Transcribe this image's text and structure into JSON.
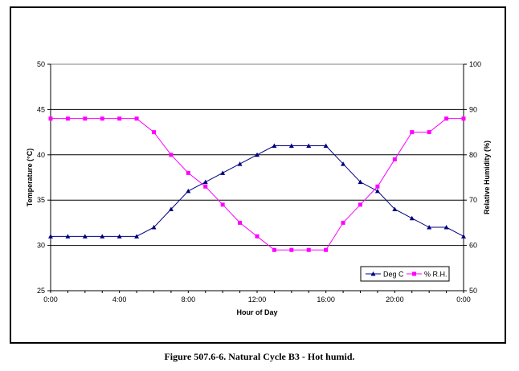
{
  "caption": "Figure 507.6-6.  Natural Cycle B3 - Hot humid.",
  "chart_data": {
    "type": "line",
    "title": "",
    "xlabel": "Hour of Day",
    "ylabel": "Temperature (°C)",
    "y2label": "Relative Humidity (%)",
    "x": [
      0,
      1,
      2,
      3,
      4,
      5,
      6,
      7,
      8,
      9,
      10,
      11,
      12,
      13,
      14,
      15,
      16,
      17,
      18,
      19,
      20,
      21,
      22,
      23,
      24
    ],
    "xlim": [
      0,
      24
    ],
    "xticks": [
      0,
      4,
      8,
      12,
      16,
      20,
      24
    ],
    "xtick_labels": [
      "0:00",
      "4:00",
      "8:00",
      "12:00",
      "16:00",
      "20:00",
      "0:00"
    ],
    "ylim": [
      25,
      50
    ],
    "yticks": [
      25,
      30,
      35,
      40,
      45,
      50
    ],
    "ytick_labels": [
      "25",
      "30",
      "35",
      "40",
      "45",
      "50"
    ],
    "y2lim": [
      50,
      100
    ],
    "y2ticks": [
      50,
      60,
      70,
      80,
      90,
      100
    ],
    "y2tick_labels": [
      "50",
      "60",
      "70",
      "80",
      "90",
      "100"
    ],
    "grid": "horizontal",
    "legend_position": "bottom-right",
    "series": [
      {
        "name": "Deg C",
        "axis": "left",
        "color": "#000080",
        "marker": "triangle",
        "values": [
          31,
          31,
          31,
          31,
          31,
          31,
          32,
          34,
          36,
          37,
          38,
          39,
          40,
          41,
          41,
          41,
          41,
          39,
          37,
          36,
          34,
          33,
          32,
          32,
          31
        ]
      },
      {
        "name": "% R.H.",
        "axis": "right",
        "color": "#ff00ff",
        "marker": "square",
        "values": [
          88,
          88,
          88,
          88,
          88,
          88,
          85,
          80,
          76,
          73,
          69,
          65,
          62,
          59,
          59,
          59,
          59,
          65,
          69,
          73,
          79,
          85,
          85,
          88,
          88
        ]
      }
    ]
  }
}
